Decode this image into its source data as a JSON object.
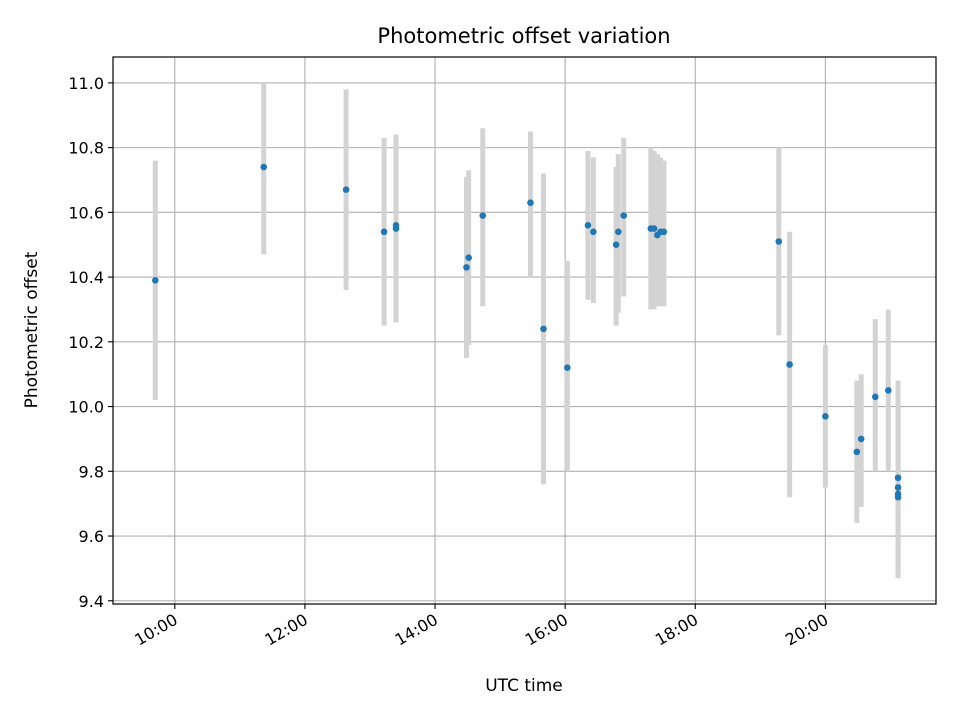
{
  "chart_data": {
    "type": "scatter",
    "title": "Photometric offset variation",
    "xlabel": "UTC time",
    "ylabel": "Photometric offset",
    "xlim": [
      "09:03",
      "21:42"
    ],
    "ylim": [
      9.39,
      11.08
    ],
    "x_ticks": [
      "10:00",
      "12:00",
      "14:00",
      "16:00",
      "18:00",
      "20:00"
    ],
    "y_ticks": [
      "9.4",
      "9.6",
      "9.8",
      "10.0",
      "10.2",
      "10.4",
      "10.6",
      "10.8",
      "11.0"
    ],
    "grid": true,
    "marker_color": "#1f77b4",
    "errorbar_color": "#d3d3d3",
    "points": [
      {
        "t": "09:42",
        "y": 10.39,
        "ylo": 10.02,
        "yhi": 10.76
      },
      {
        "t": "11:22",
        "y": 10.74,
        "ylo": 10.47,
        "yhi": 11.0
      },
      {
        "t": "12:38",
        "y": 10.67,
        "ylo": 10.36,
        "yhi": 10.98
      },
      {
        "t": "13:13",
        "y": 10.54,
        "ylo": 10.25,
        "yhi": 10.83
      },
      {
        "t": "13:24",
        "y": 10.56,
        "ylo": 10.26,
        "yhi": 10.84
      },
      {
        "t": "13:24",
        "y": 10.55,
        "ylo": 10.26,
        "yhi": 10.84
      },
      {
        "t": "14:29",
        "y": 10.43,
        "ylo": 10.15,
        "yhi": 10.71
      },
      {
        "t": "14:31",
        "y": 10.46,
        "ylo": 10.19,
        "yhi": 10.73
      },
      {
        "t": "14:44",
        "y": 10.59,
        "ylo": 10.31,
        "yhi": 10.86
      },
      {
        "t": "15:28",
        "y": 10.63,
        "ylo": 10.4,
        "yhi": 10.85
      },
      {
        "t": "15:40",
        "y": 10.24,
        "ylo": 9.76,
        "yhi": 10.72
      },
      {
        "t": "16:02",
        "y": 10.12,
        "ylo": 9.8,
        "yhi": 10.45
      },
      {
        "t": "16:21",
        "y": 10.56,
        "ylo": 10.33,
        "yhi": 10.79
      },
      {
        "t": "16:26",
        "y": 10.54,
        "ylo": 10.32,
        "yhi": 10.77
      },
      {
        "t": "16:47",
        "y": 10.5,
        "ylo": 10.25,
        "yhi": 10.74
      },
      {
        "t": "16:49",
        "y": 10.54,
        "ylo": 10.29,
        "yhi": 10.78
      },
      {
        "t": "16:54",
        "y": 10.59,
        "ylo": 10.34,
        "yhi": 10.83
      },
      {
        "t": "17:19",
        "y": 10.55,
        "ylo": 10.3,
        "yhi": 10.8
      },
      {
        "t": "17:22",
        "y": 10.55,
        "ylo": 10.3,
        "yhi": 10.79
      },
      {
        "t": "17:25",
        "y": 10.53,
        "ylo": 10.31,
        "yhi": 10.78
      },
      {
        "t": "17:28",
        "y": 10.54,
        "ylo": 10.31,
        "yhi": 10.77
      },
      {
        "t": "17:31",
        "y": 10.54,
        "ylo": 10.31,
        "yhi": 10.76
      },
      {
        "t": "19:17",
        "y": 10.51,
        "ylo": 10.22,
        "yhi": 10.8
      },
      {
        "t": "19:27",
        "y": 10.13,
        "ylo": 9.72,
        "yhi": 10.54
      },
      {
        "t": "20:00",
        "y": 9.97,
        "ylo": 9.75,
        "yhi": 10.19
      },
      {
        "t": "20:29",
        "y": 9.86,
        "ylo": 9.64,
        "yhi": 10.08
      },
      {
        "t": "20:33",
        "y": 9.9,
        "ylo": 9.69,
        "yhi": 10.1
      },
      {
        "t": "20:46",
        "y": 10.03,
        "ylo": 9.8,
        "yhi": 10.27
      },
      {
        "t": "20:58",
        "y": 10.05,
        "ylo": 9.8,
        "yhi": 10.3
      },
      {
        "t": "21:07",
        "y": 9.78,
        "ylo": 9.49,
        "yhi": 10.08
      },
      {
        "t": "21:07",
        "y": 9.75,
        "ylo": 9.48,
        "yhi": 10.05
      },
      {
        "t": "21:07",
        "y": 9.73,
        "ylo": 9.47,
        "yhi": 10.01
      },
      {
        "t": "21:07",
        "y": 9.72,
        "ylo": 9.47,
        "yhi": 10.0
      }
    ]
  }
}
